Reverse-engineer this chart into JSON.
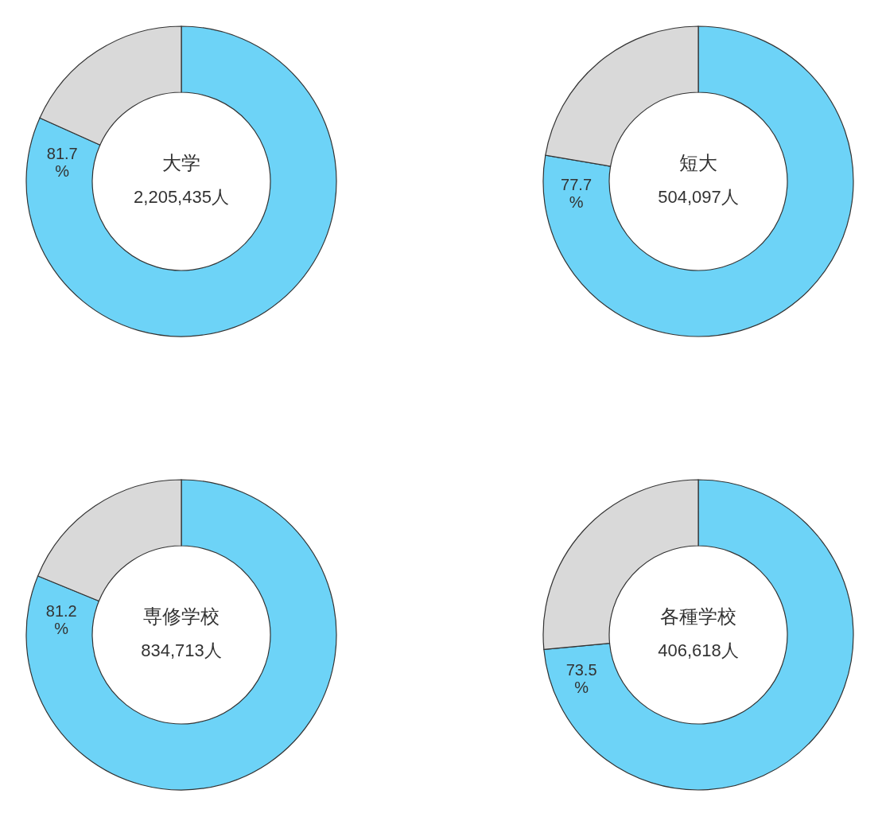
{
  "chart_data": [
    {
      "type": "donut",
      "title": "大学",
      "subtitle": "2,205,435人",
      "categories": [
        null,
        null
      ],
      "values": [
        81.7,
        18.3
      ],
      "colors": [
        "#6dd3f7",
        "#d9d9d9"
      ],
      "value_labels": [
        "81.7\n%",
        null
      ],
      "legend": false
    },
    {
      "type": "donut",
      "title": "短大",
      "subtitle": "504,097人",
      "categories": [
        null,
        null
      ],
      "values": [
        77.7,
        22.3
      ],
      "colors": [
        "#6dd3f7",
        "#d9d9d9"
      ],
      "value_labels": [
        "77.7\n%",
        null
      ],
      "legend": false
    },
    {
      "type": "donut",
      "title": "専修学校",
      "subtitle": "834,713人",
      "categories": [
        null,
        null
      ],
      "values": [
        81.2,
        18.8
      ],
      "colors": [
        "#6dd3f7",
        "#d9d9d9"
      ],
      "value_labels": [
        "81.2\n%",
        null
      ],
      "legend": false
    },
    {
      "type": "donut",
      "title": "各種学校",
      "subtitle": "406,618人",
      "categories": [
        null,
        null
      ],
      "values": [
        73.5,
        26.5
      ],
      "colors": [
        "#6dd3f7",
        "#d9d9d9"
      ],
      "value_labels": [
        "73.5\n%",
        null
      ],
      "legend": false
    }
  ]
}
